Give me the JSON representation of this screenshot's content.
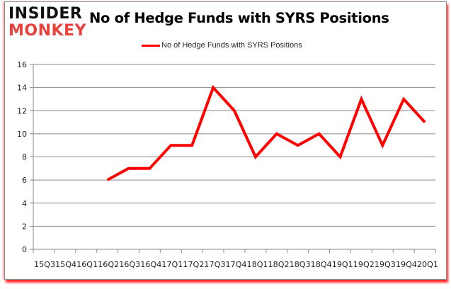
{
  "logo": {
    "top": "INSIDER",
    "bottom": "MONKEY"
  },
  "header": {
    "title": "No of Hedge Funds with SYRS Positions"
  },
  "legend": {
    "label": "No of Hedge Funds with SYRS Positions",
    "color": "#ff0000"
  },
  "chart_data": {
    "type": "line",
    "title": "No of Hedge Funds with SYRS Positions",
    "xlabel": "",
    "ylabel": "",
    "categories": [
      "15Q3",
      "15Q4",
      "16Q1",
      "16Q2",
      "16Q3",
      "16Q4",
      "17Q1",
      "17Q2",
      "17Q3",
      "17Q4",
      "18Q1",
      "18Q2",
      "18Q3",
      "18Q4",
      "19Q1",
      "19Q2",
      "19Q3",
      "19Q4",
      "20Q1"
    ],
    "series": [
      {
        "name": "No of Hedge Funds with SYRS Positions",
        "color": "#ff0000",
        "values": [
          null,
          null,
          null,
          6,
          7,
          7,
          9,
          9,
          14,
          12,
          8,
          10,
          9,
          10,
          8,
          13,
          9,
          13,
          11
        ]
      }
    ],
    "ylim": [
      0,
      16
    ],
    "yticks": [
      0,
      2,
      4,
      6,
      8,
      10,
      12,
      14,
      16
    ],
    "grid": true,
    "legend_position": "top"
  }
}
